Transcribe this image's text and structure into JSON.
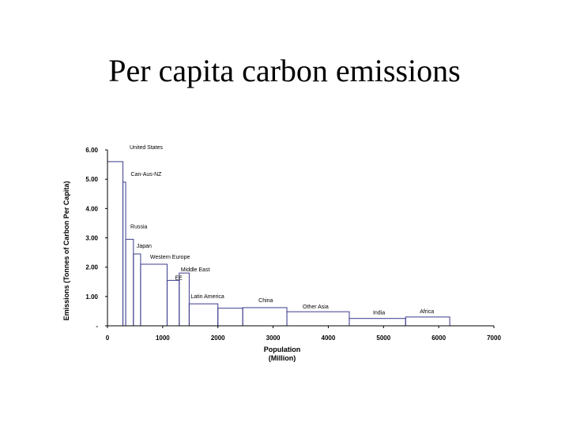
{
  "title": "Per capita carbon emissions",
  "colors": {
    "bar_stroke": "#3a3a8c",
    "axis": "#000000",
    "text": "#000000"
  },
  "chart_data": {
    "type": "bar",
    "variant": "variable-width",
    "xlabel_lines": [
      "Population",
      "(Million)"
    ],
    "ylabel": "Emissions (Tonnes of Carbon Per Capita)",
    "xlim": [
      0,
      7000
    ],
    "ylim": [
      0,
      6
    ],
    "x_ticks": [
      "0",
      "1000",
      "2000",
      "3000",
      "4000",
      "5000",
      "6000",
      "7000"
    ],
    "y_ticks": [
      "-",
      "1.00",
      "2.00",
      "3.00",
      "4.00",
      "5.00",
      "6.00"
    ],
    "grid": false,
    "bars": [
      {
        "label": "United States",
        "x_start": 0,
        "x_end": 280,
        "value": 5.6
      },
      {
        "label": "Can-Aus-NZ",
        "x_start": 280,
        "x_end": 330,
        "value": 4.9
      },
      {
        "label": "Russia",
        "x_start": 330,
        "x_end": 470,
        "value": 2.95
      },
      {
        "label": "Japan",
        "x_start": 470,
        "x_end": 600,
        "value": 2.45
      },
      {
        "label": "Western Europe",
        "x_start": 600,
        "x_end": 1080,
        "value": 2.1
      },
      {
        "label": "EE",
        "x_start": 1080,
        "x_end": 1300,
        "value": 1.55
      },
      {
        "label": "Middle East",
        "x_start": 1300,
        "x_end": 1480,
        "value": 1.8
      },
      {
        "label": "Latin America",
        "x_start": 1480,
        "x_end": 2000,
        "value": 0.75
      },
      {
        "label": "",
        "x_start": 2000,
        "x_end": 2450,
        "value": 0.6
      },
      {
        "label": "China",
        "x_start": 2450,
        "x_end": 3250,
        "value": 0.62
      },
      {
        "label": "Other Asia",
        "x_start": 3250,
        "x_end": 4380,
        "value": 0.48
      },
      {
        "label": "India",
        "x_start": 4380,
        "x_end": 5400,
        "value": 0.25
      },
      {
        "label": "Africa",
        "x_start": 5400,
        "x_end": 6200,
        "value": 0.3
      }
    ]
  }
}
